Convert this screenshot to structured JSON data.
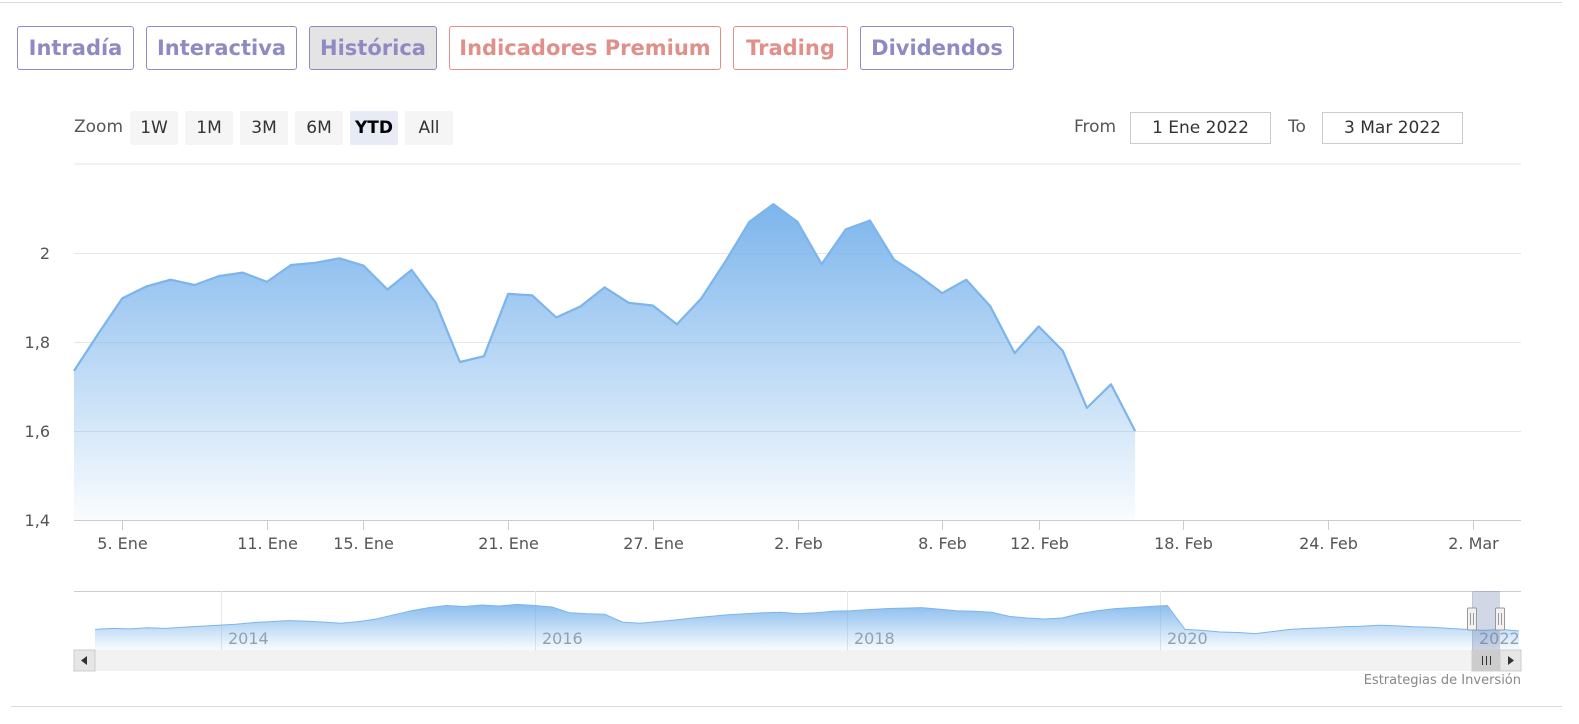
{
  "tabs": [
    {
      "label": "Intradía",
      "color": "#8f8bc2",
      "active": false
    },
    {
      "label": "Interactiva",
      "color": "#8f8bc2",
      "active": false
    },
    {
      "label": "Histórica",
      "color": "#8f8bc2",
      "active": true
    },
    {
      "label": "Indicadores Premium",
      "color": "#e08f8b",
      "active": false
    },
    {
      "label": "Trading",
      "color": "#e08f8b",
      "active": false
    },
    {
      "label": "Dividendos",
      "color": "#8f8bc2",
      "active": false
    }
  ],
  "zoom": {
    "label": "Zoom",
    "buttons": [
      "1W",
      "1M",
      "3M",
      "6M",
      "YTD",
      "All"
    ],
    "selected": "YTD"
  },
  "range": {
    "from_label": "From",
    "from_value": "1 Ene 2022",
    "to_label": "To",
    "to_value": "3 Mar 2022"
  },
  "credit": "Estrategias de Inversión",
  "chart_data": {
    "type": "area",
    "title": "",
    "xlabel": "",
    "ylabel": "",
    "ylim": [
      1.4,
      2.2
    ],
    "yticks": [
      "1,4",
      "1,6",
      "1,8",
      "2"
    ],
    "ytick_values": [
      1.4,
      1.6,
      1.8,
      2.0
    ],
    "xlim": [
      "2022-01-03",
      "2022-03-04"
    ],
    "xticks": [
      {
        "label": "5. Ene",
        "date": "2022-01-05"
      },
      {
        "label": "11. Ene",
        "date": "2022-01-11"
      },
      {
        "label": "15. Ene",
        "date": "2022-01-15"
      },
      {
        "label": "21. Ene",
        "date": "2022-01-21"
      },
      {
        "label": "27. Ene",
        "date": "2022-01-27"
      },
      {
        "label": "2. Feb",
        "date": "2022-02-02"
      },
      {
        "label": "8. Feb",
        "date": "2022-02-08"
      },
      {
        "label": "12. Feb",
        "date": "2022-02-12"
      },
      {
        "label": "18. Feb",
        "date": "2022-02-18"
      },
      {
        "label": "24. Feb",
        "date": "2022-02-24"
      },
      {
        "label": "2. Mar",
        "date": "2022-03-02"
      }
    ],
    "series": [
      {
        "color": "#7cb5ec",
        "points": [
          [
            "2022-01-03",
            1.735
          ],
          [
            "2022-01-04",
            1.818
          ],
          [
            "2022-01-05",
            1.898
          ],
          [
            "2022-01-06",
            1.925
          ],
          [
            "2022-01-07",
            1.94
          ],
          [
            "2022-01-08",
            1.928
          ],
          [
            "2022-01-09",
            1.948
          ],
          [
            "2022-01-10",
            1.956
          ],
          [
            "2022-01-11",
            1.935
          ],
          [
            "2022-01-12",
            1.973
          ],
          [
            "2022-01-13",
            1.978
          ],
          [
            "2022-01-14",
            1.988
          ],
          [
            "2022-01-15",
            1.972
          ],
          [
            "2022-01-16",
            1.918
          ],
          [
            "2022-01-17",
            1.962
          ],
          [
            "2022-01-18",
            1.888
          ],
          [
            "2022-01-19",
            1.755
          ],
          [
            "2022-01-20",
            1.768
          ],
          [
            "2022-01-21",
            1.908
          ],
          [
            "2022-01-22",
            1.905
          ],
          [
            "2022-01-23",
            1.855
          ],
          [
            "2022-01-24",
            1.88
          ],
          [
            "2022-01-25",
            1.923
          ],
          [
            "2022-01-26",
            1.888
          ],
          [
            "2022-01-27",
            1.882
          ],
          [
            "2022-01-28",
            1.84
          ],
          [
            "2022-01-29",
            1.897
          ],
          [
            "2022-01-30",
            1.98
          ],
          [
            "2022-01-31",
            2.07
          ],
          [
            "2022-02-01",
            2.11
          ],
          [
            "2022-02-02",
            2.07
          ],
          [
            "2022-02-03",
            1.975
          ],
          [
            "2022-02-04",
            2.053
          ],
          [
            "2022-02-05",
            2.073
          ],
          [
            "2022-02-06",
            1.985
          ],
          [
            "2022-02-07",
            1.95
          ],
          [
            "2022-02-08",
            1.91
          ],
          [
            "2022-02-09",
            1.94
          ],
          [
            "2022-02-10",
            1.88
          ],
          [
            "2022-02-11",
            1.775
          ],
          [
            "2022-02-12",
            1.835
          ],
          [
            "2022-02-13",
            1.78
          ],
          [
            "2022-02-14",
            1.652
          ],
          [
            "2022-02-15",
            1.705
          ],
          [
            "2022-02-16",
            1.6
          ]
        ]
      }
    ],
    "navigator": {
      "xticks": [
        "2014",
        "2016",
        "2018",
        "2020",
        "2022"
      ],
      "series": [
        0.3,
        0.32,
        0.31,
        0.33,
        0.32,
        0.34,
        0.36,
        0.38,
        0.4,
        0.43,
        0.45,
        0.47,
        0.46,
        0.44,
        0.42,
        0.45,
        0.5,
        0.58,
        0.66,
        0.72,
        0.76,
        0.74,
        0.77,
        0.75,
        0.78,
        0.76,
        0.73,
        0.62,
        0.6,
        0.59,
        0.44,
        0.42,
        0.45,
        0.48,
        0.52,
        0.55,
        0.58,
        0.6,
        0.62,
        0.63,
        0.6,
        0.62,
        0.65,
        0.66,
        0.68,
        0.7,
        0.71,
        0.72,
        0.69,
        0.66,
        0.65,
        0.63,
        0.55,
        0.52,
        0.5,
        0.52,
        0.6,
        0.66,
        0.7,
        0.72,
        0.74,
        0.76,
        0.3,
        0.28,
        0.25,
        0.24,
        0.22,
        0.26,
        0.3,
        0.32,
        0.33,
        0.35,
        0.36,
        0.38,
        0.37,
        0.35,
        0.34,
        0.32,
        0.3,
        0.28,
        0.3,
        0.27
      ]
    }
  }
}
